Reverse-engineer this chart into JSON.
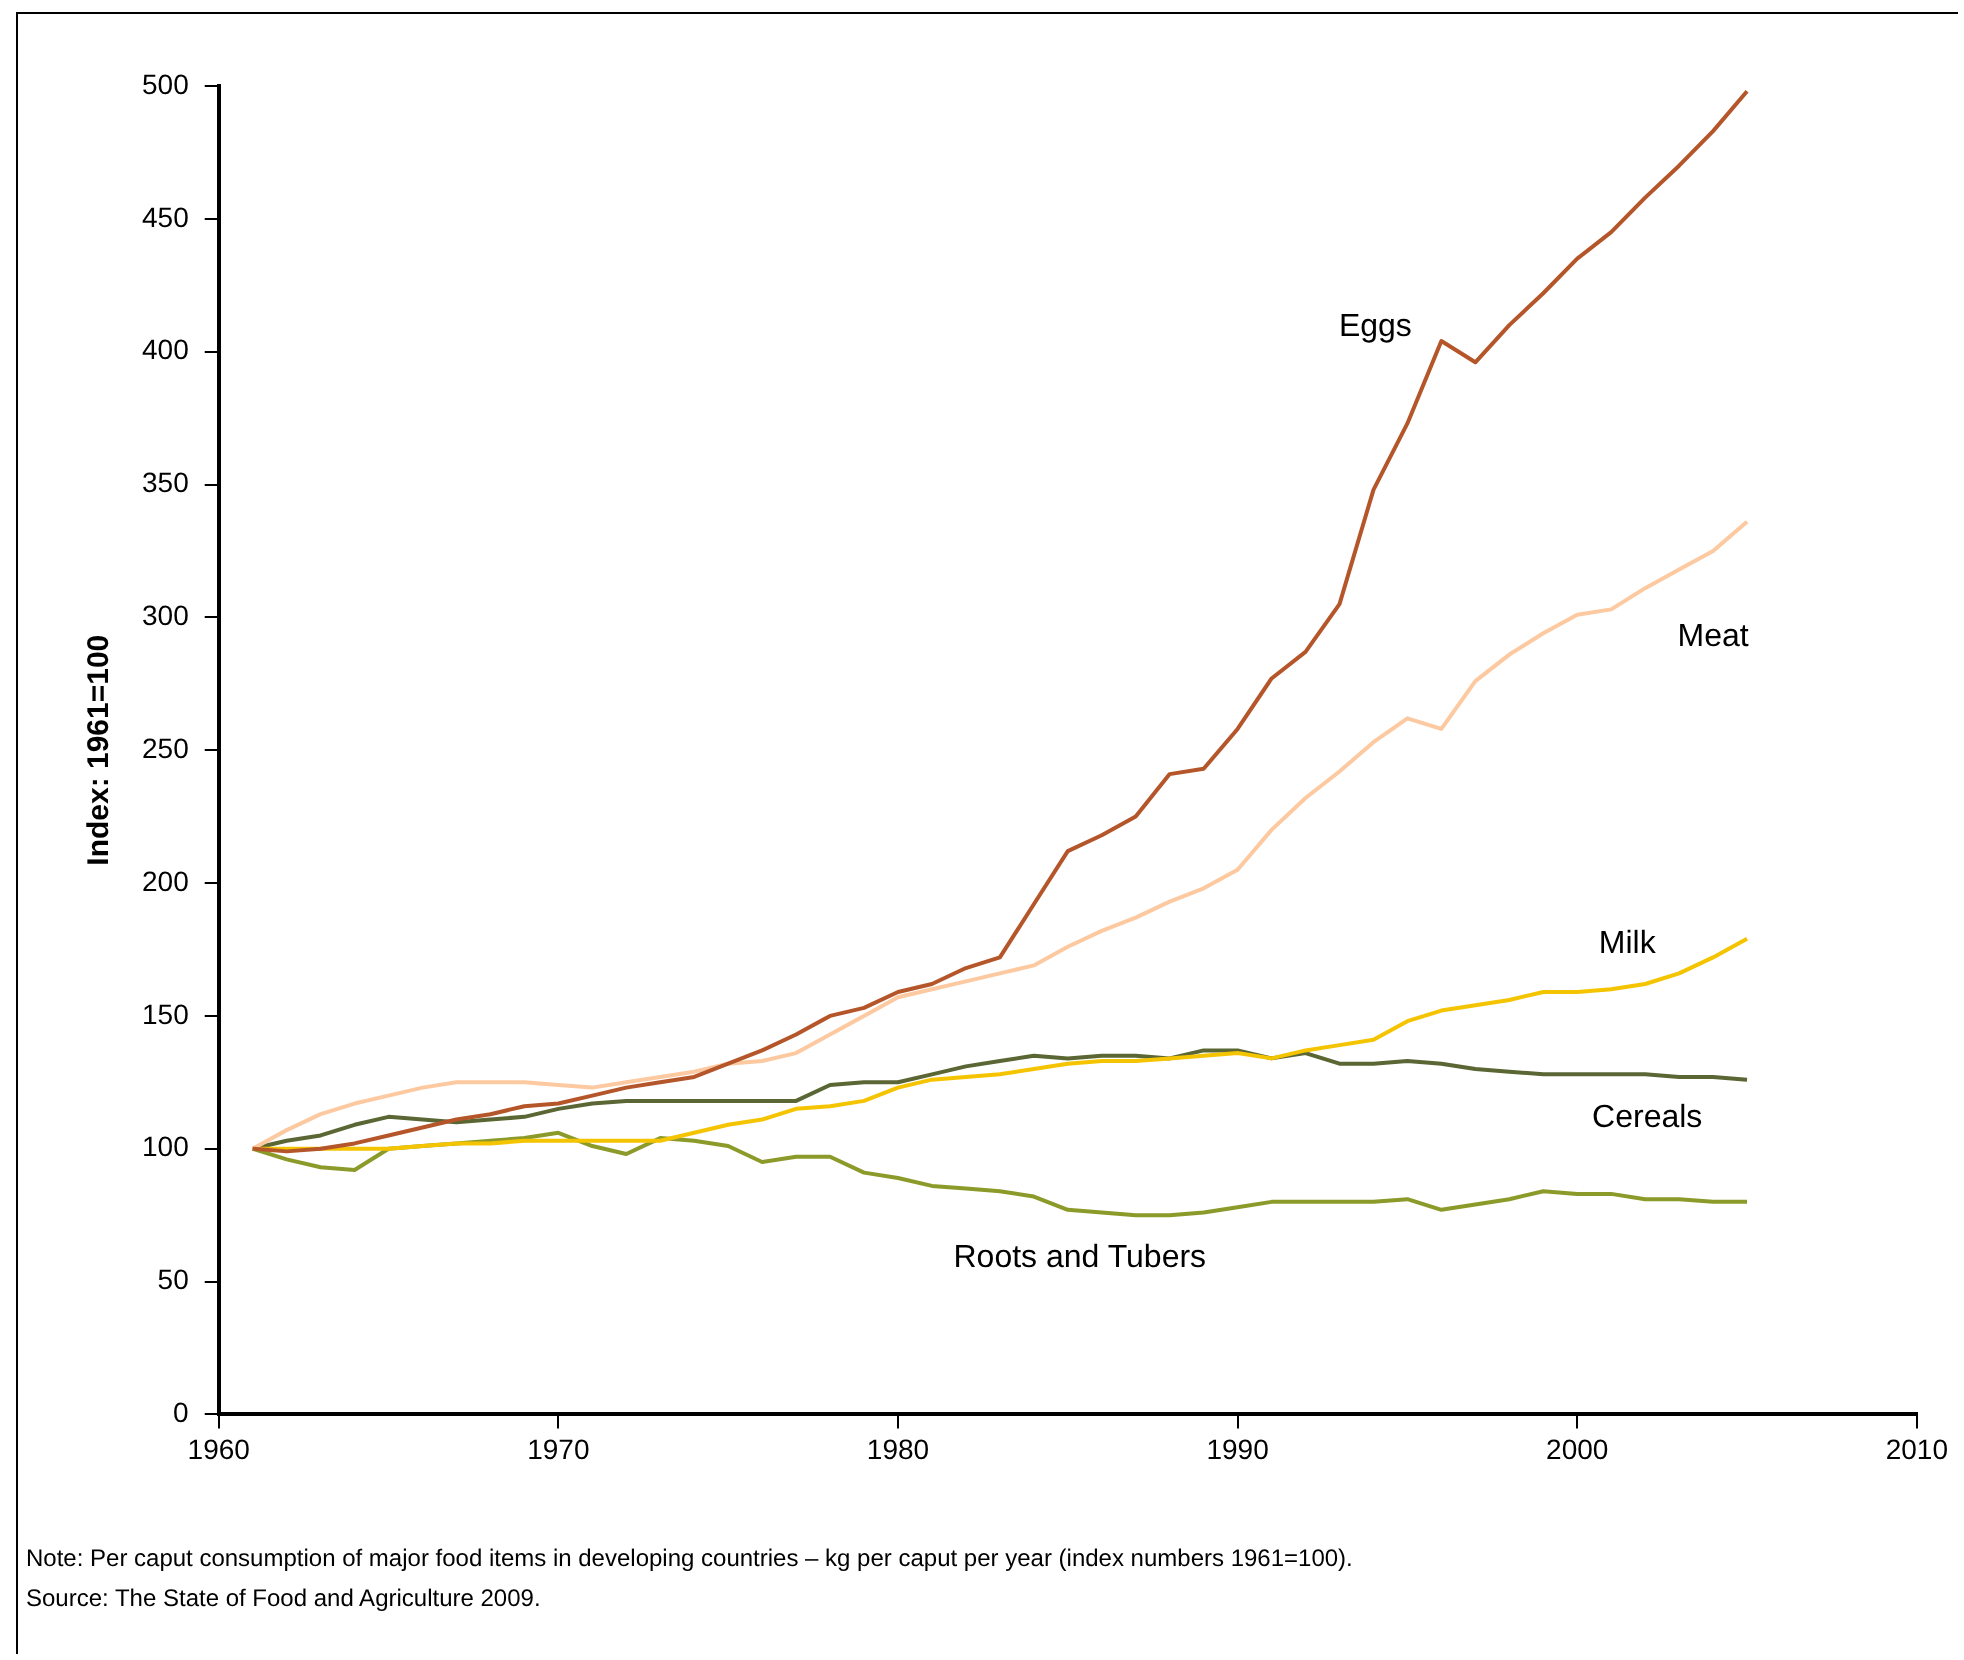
{
  "chart_data": {
    "type": "line",
    "ylabel": "Index: 1961=100",
    "marker": "none",
    "x": [
      1961,
      1962,
      1963,
      1964,
      1965,
      1966,
      1967,
      1968,
      1969,
      1970,
      1971,
      1972,
      1973,
      1974,
      1975,
      1976,
      1977,
      1978,
      1979,
      1980,
      1981,
      1982,
      1983,
      1984,
      1985,
      1986,
      1987,
      1988,
      1989,
      1990,
      1991,
      1992,
      1993,
      1994,
      1995,
      1996,
      1997,
      1998,
      1999,
      2000,
      2001,
      2002,
      2003,
      2004,
      2005
    ],
    "xlim": [
      1960,
      2010
    ],
    "xticks": [
      1960,
      1970,
      1980,
      1990,
      2000,
      2010
    ],
    "ylim": [
      0,
      500
    ],
    "yticks": [
      0,
      50,
      100,
      150,
      200,
      250,
      300,
      350,
      400,
      450,
      500
    ],
    "series": [
      {
        "name": "Eggs",
        "color": "#b5562a",
        "values": [
          100,
          99,
          100,
          102,
          105,
          108,
          111,
          113,
          116,
          117,
          120,
          123,
          125,
          127,
          132,
          137,
          143,
          150,
          153,
          159,
          162,
          168,
          172,
          192,
          212,
          218,
          225,
          241,
          243,
          258,
          277,
          287,
          305,
          348,
          373,
          404,
          396,
          410,
          422,
          435,
          445,
          458,
          470,
          483,
          498
        ]
      },
      {
        "name": "Meat",
        "color": "#fdc9a0",
        "values": [
          100,
          107,
          113,
          117,
          120,
          123,
          125,
          125,
          125,
          124,
          123,
          125,
          127,
          129,
          132,
          133,
          136,
          143,
          150,
          157,
          160,
          163,
          166,
          169,
          176,
          182,
          187,
          193,
          198,
          205,
          220,
          232,
          242,
          253,
          262,
          258,
          276,
          286,
          294,
          301,
          303,
          311,
          318,
          325,
          336
        ]
      },
      {
        "name": "Milk",
        "color": "#f5c400",
        "values": [
          100,
          100,
          100,
          100,
          100,
          101,
          102,
          102,
          103,
          103,
          103,
          103,
          103,
          106,
          109,
          111,
          115,
          116,
          118,
          123,
          126,
          127,
          128,
          130,
          132,
          133,
          133,
          134,
          135,
          136,
          134,
          137,
          139,
          141,
          148,
          152,
          154,
          156,
          159,
          159,
          160,
          162,
          166,
          172,
          179
        ]
      },
      {
        "name": "Cereals",
        "color": "#5a6633",
        "values": [
          100,
          103,
          105,
          109,
          112,
          111,
          110,
          111,
          112,
          115,
          117,
          118,
          118,
          118,
          118,
          118,
          118,
          124,
          125,
          125,
          128,
          131,
          133,
          135,
          134,
          135,
          135,
          134,
          137,
          137,
          134,
          136,
          132,
          132,
          133,
          132,
          130,
          129,
          128,
          128,
          128,
          128,
          127,
          127,
          126
        ]
      },
      {
        "name": "Roots and Tubers",
        "color": "#8c9a2a",
        "values": [
          100,
          96,
          93,
          92,
          100,
          101,
          102,
          103,
          104,
          106,
          101,
          98,
          104,
          103,
          101,
          95,
          97,
          97,
          91,
          89,
          86,
          85,
          84,
          82,
          77,
          76,
          75,
          75,
          76,
          78,
          80,
          80,
          80,
          80,
          81,
          77,
          79,
          81,
          84,
          83,
          83,
          81,
          81,
          80,
          80
        ]
      }
    ],
    "annotations": [
      "Note: Per caput consumption of major food items in developing countries – kg per caput per year (index numbers 1961=100).",
      "Source: The State of Food and Agriculture 2009."
    ]
  }
}
